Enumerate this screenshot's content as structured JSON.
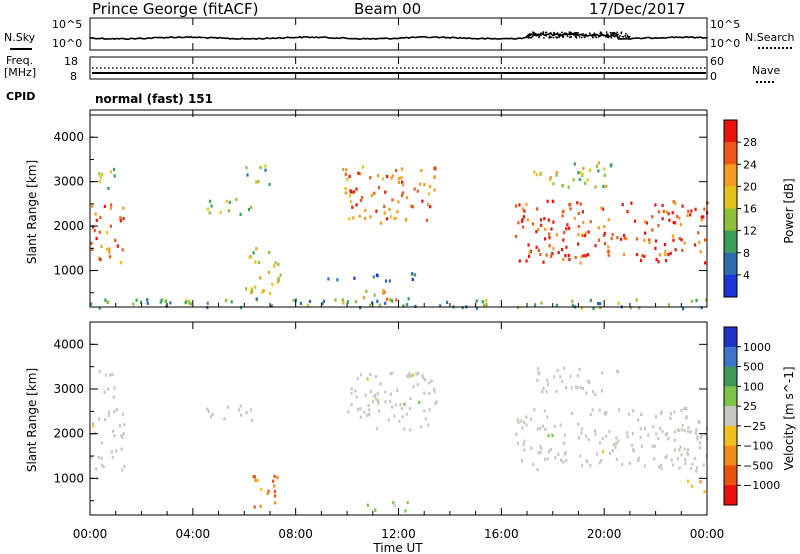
{
  "header": {
    "station": "Prince George (fitACF)",
    "beam": "Beam 00",
    "date": "17/Dec/2017"
  },
  "noise_panel": {
    "left_label": "N.Sky",
    "right_label": "N.Search",
    "left_ticks": [
      "10^5",
      "10^0"
    ],
    "right_ticks": [
      "10^5",
      "10^0"
    ]
  },
  "freq_panel": {
    "left_label_top": "Freq.",
    "left_label_unit": "[MHz]",
    "right_label": "Nave",
    "left_ticks": [
      "18",
      "8"
    ],
    "right_ticks": [
      "60",
      "0"
    ]
  },
  "cpid": {
    "label": "CPID",
    "value": "normal (fast) 151"
  },
  "x_axis": {
    "label": "Time UT",
    "ticks": [
      "00:00",
      "04:00",
      "08:00",
      "12:00",
      "16:00",
      "20:00",
      "00:00"
    ]
  },
  "colors": {
    "noise_line": "#000000",
    "dots": "#000000"
  },
  "chart_data": [
    {
      "type": "heatmap",
      "title": "",
      "xlabel": "Time UT",
      "ylabel": "Slant Range [km]",
      "xlim": [
        0,
        24
      ],
      "ylim": [
        180,
        4500
      ],
      "yticks": [
        "1000",
        "2000",
        "3000",
        "4000"
      ],
      "colorbar": {
        "label": "Power [dB]",
        "ticks": [
          "28",
          "24",
          "20",
          "16",
          "12",
          "8",
          "4"
        ],
        "colors": [
          "#e8150e",
          "#f0571a",
          "#f59a22",
          "#e6c21c",
          "#8cbf3a",
          "#3a9e5c",
          "#2e6cb0",
          "#1e34d6"
        ],
        "range": [
          0,
          30
        ]
      },
      "regions": [
        {
          "t": [
            0.0,
            1.3
          ],
          "r": [
            1200,
            2600
          ],
          "desc": "streak",
          "value": 24
        },
        {
          "t": [
            0.3,
            1.0
          ],
          "r": [
            2800,
            3500
          ],
          "value": 14
        },
        {
          "t": [
            4.5,
            6.3
          ],
          "r": [
            2300,
            2700
          ],
          "value": 14
        },
        {
          "t": [
            6.0,
            7.4
          ],
          "r": [
            500,
            1600
          ],
          "value": 16
        },
        {
          "t": [
            6.0,
            7.0
          ],
          "r": [
            2900,
            3400
          ],
          "value": 10
        },
        {
          "t": [
            9.8,
            13.5
          ],
          "r": [
            2100,
            3400
          ],
          "value": 22
        },
        {
          "t": [
            9.2,
            12.8
          ],
          "r": [
            800,
            1000
          ],
          "value": 6
        },
        {
          "t": [
            10.3,
            12.0
          ],
          "r": [
            300,
            600
          ],
          "value": 20
        },
        {
          "t": [
            16.5,
            24.0
          ],
          "r": [
            1200,
            2600
          ],
          "value": 26
        },
        {
          "t": [
            17.2,
            20.5
          ],
          "r": [
            2900,
            3500
          ],
          "value": 14
        },
        {
          "t": [
            0.0,
            24.0
          ],
          "r": [
            180,
            400
          ],
          "value": 10
        }
      ]
    },
    {
      "type": "heatmap",
      "title": "",
      "xlabel": "Time UT",
      "ylabel": "Slant Range [km]",
      "xlim": [
        0,
        24
      ],
      "ylim": [
        180,
        4500
      ],
      "yticks": [
        "1000",
        "2000",
        "3000",
        "4000"
      ],
      "colorbar": {
        "label": "Velocity [m s^-1]",
        "ticks": [
          "1000",
          "500",
          "100",
          "25",
          "−25",
          "−100",
          "−500",
          "−1000"
        ],
        "colors": [
          "#2030c0",
          "#3f74c8",
          "#3c9a55",
          "#7cc44a",
          "#c8c8c0",
          "#f0c020",
          "#f08a1e",
          "#e8520f",
          "#e81010"
        ],
        "range": [
          -1000,
          1000
        ]
      },
      "regions": [
        {
          "t": [
            0.0,
            1.3
          ],
          "r": [
            1200,
            2600
          ],
          "value": 0
        },
        {
          "t": [
            0.3,
            1.0
          ],
          "r": [
            2800,
            3500
          ],
          "value": 0
        },
        {
          "t": [
            0.2,
            0.6
          ],
          "r": [
            1000,
            1200
          ],
          "value": 100
        },
        {
          "t": [
            4.5,
            6.3
          ],
          "r": [
            2300,
            2700
          ],
          "value": 0
        },
        {
          "t": [
            6.2,
            7.4
          ],
          "r": [
            300,
            1100
          ],
          "value": -500
        },
        {
          "t": [
            9.8,
            13.5
          ],
          "r": [
            2100,
            3400
          ],
          "value": 0
        },
        {
          "t": [
            10.5,
            12.5
          ],
          "r": [
            300,
            500
          ],
          "value": 150
        },
        {
          "t": [
            16.5,
            24.0
          ],
          "r": [
            1200,
            2600
          ],
          "value": 0
        },
        {
          "t": [
            17.2,
            20.5
          ],
          "r": [
            2900,
            3500
          ],
          "value": 0
        },
        {
          "t": [
            23.2,
            24.0
          ],
          "r": [
            700,
            1000
          ],
          "value": -300
        }
      ]
    }
  ]
}
